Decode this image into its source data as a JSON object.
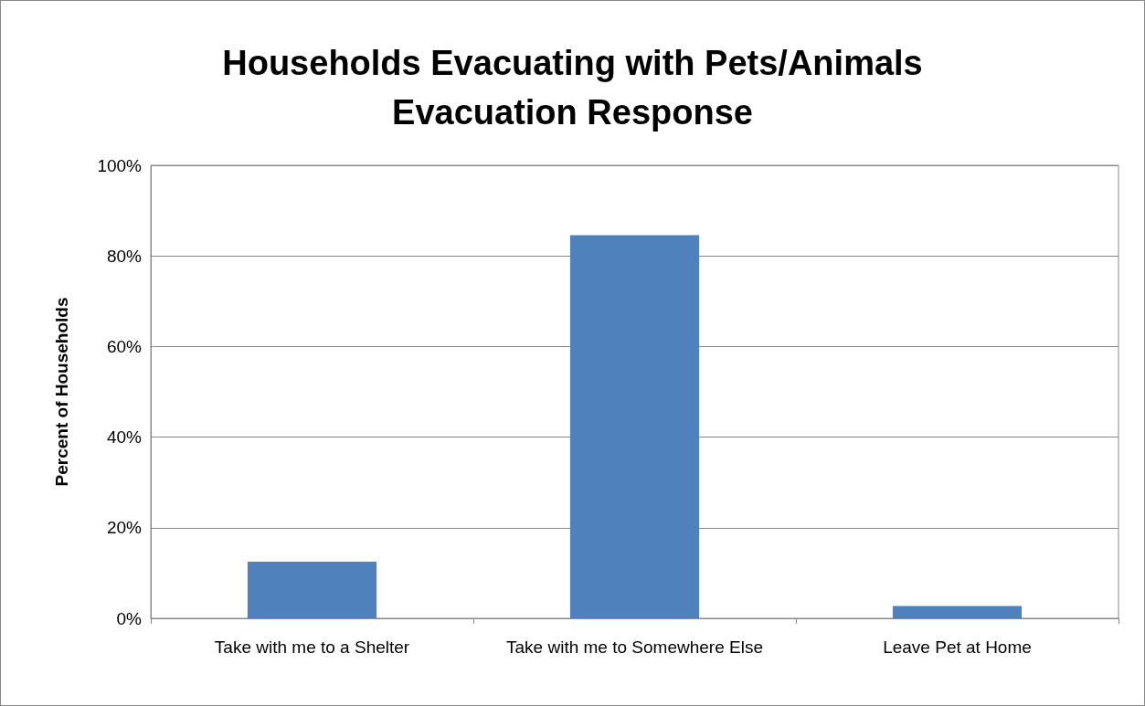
{
  "chart_data": {
    "type": "bar",
    "title": "Households Evacuating with Pets/Animals\nEvacuation Response",
    "ylabel": "Percent of Households",
    "categories": [
      "Take with me to a Shelter",
      "Take with me to Somewhere Else",
      "Leave Pet at Home"
    ],
    "values": [
      12.5,
      84.6,
      2.7
    ],
    "color": "#4f81bd",
    "ylim": [
      0,
      100
    ],
    "yticks": [
      {
        "value": 0,
        "label": "0%"
      },
      {
        "value": 20,
        "label": "20%"
      },
      {
        "value": 40,
        "label": "40%"
      },
      {
        "value": 60,
        "label": "60%"
      },
      {
        "value": 80,
        "label": "80%"
      },
      {
        "value": 100,
        "label": "100%"
      }
    ],
    "grid": "y"
  }
}
